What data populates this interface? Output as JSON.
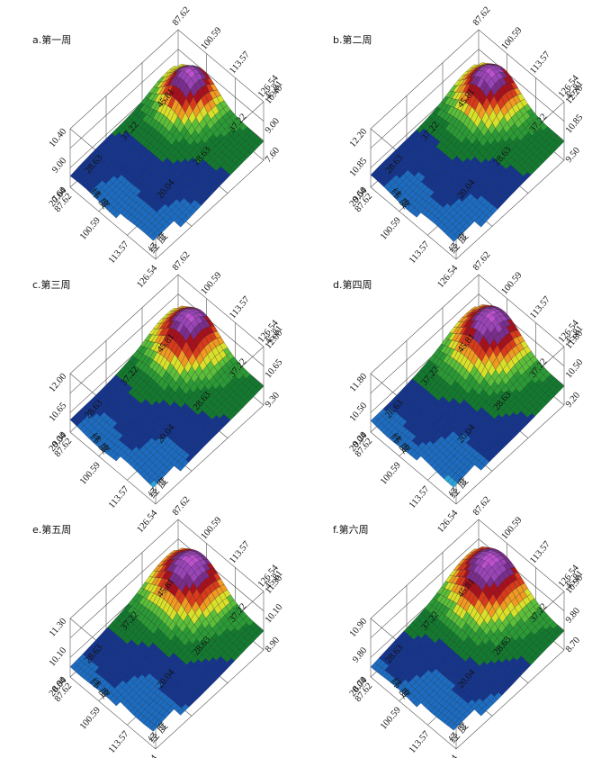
{
  "chart_data": [
    {
      "type": "surface",
      "title": "a.第一周",
      "longitude_ticks": [
        "87.62",
        "100.59",
        "113.57",
        "126.54"
      ],
      "latitude_ticks": [
        "45.81",
        "37.22",
        "28.63",
        "20.04"
      ],
      "z_ticks": [
        "10.40",
        "9.00",
        "7.60"
      ],
      "xlabel": "经 度",
      "ylabel": "纬 度",
      "zlim": [
        7.6,
        10.4
      ],
      "band_colors": [
        "#4fd0ee",
        "#2aa2da",
        "#1b6cc2",
        "#14348e",
        "#127a2e",
        "#2a9a35",
        "#5bbf3a",
        "#d9e02a",
        "#f09a22",
        "#d83a1a",
        "#a8101c",
        "#7a2d8c",
        "#9a44b8",
        "#c050d2",
        "#ffffff"
      ]
    },
    {
      "type": "surface",
      "title": "b.第二周",
      "longitude_ticks": [
        "87.62",
        "100.59",
        "113.57",
        "126.54"
      ],
      "latitude_ticks": [
        "45.81",
        "37.22",
        "28.63",
        "20.04"
      ],
      "z_ticks": [
        "12.20",
        "10.85",
        "9.50"
      ],
      "xlabel": "经 度",
      "ylabel": "纬 度",
      "zlim": [
        9.5,
        12.2
      ]
    },
    {
      "type": "surface",
      "title": "c.第三周",
      "longitude_ticks": [
        "87.62",
        "100.59",
        "113.57",
        "126.54"
      ],
      "latitude_ticks": [
        "45.81",
        "37.22",
        "28.63",
        "20.04"
      ],
      "z_ticks": [
        "12.00",
        "10.65",
        "9.30"
      ],
      "xlabel": "经 度",
      "ylabel": "纬 度",
      "zlim": [
        9.3,
        12.0
      ]
    },
    {
      "type": "surface",
      "title": "d.第四周",
      "longitude_ticks": [
        "87.62",
        "100.59",
        "113.57",
        "126.54"
      ],
      "latitude_ticks": [
        "45.81",
        "37.22",
        "28.63",
        "20.04"
      ],
      "z_ticks": [
        "11.80",
        "10.50",
        "9.20"
      ],
      "xlabel": "经 度",
      "ylabel": "纬 度",
      "zlim": [
        9.2,
        11.8
      ]
    },
    {
      "type": "surface",
      "title": "e.第五周",
      "longitude_ticks": [
        "87.62",
        "100.59",
        "113.57",
        "126.54"
      ],
      "latitude_ticks": [
        "45.81",
        "37.22",
        "28.63",
        "20.04"
      ],
      "z_ticks": [
        "11.30",
        "10.10",
        "8.90"
      ],
      "xlabel": "经 度",
      "ylabel": "纬 度",
      "zlim": [
        8.9,
        11.3
      ]
    },
    {
      "type": "surface",
      "title": "f.第六周",
      "longitude_ticks": [
        "87.62",
        "100.59",
        "113.57",
        "126.54"
      ],
      "latitude_ticks": [
        "45.81",
        "37.22",
        "28.63",
        "20.04"
      ],
      "z_ticks": [
        "10.90",
        "9.80",
        "8.70"
      ],
      "xlabel": "经 度",
      "ylabel": "纬 度",
      "zlim": [
        8.7,
        10.9
      ]
    }
  ]
}
